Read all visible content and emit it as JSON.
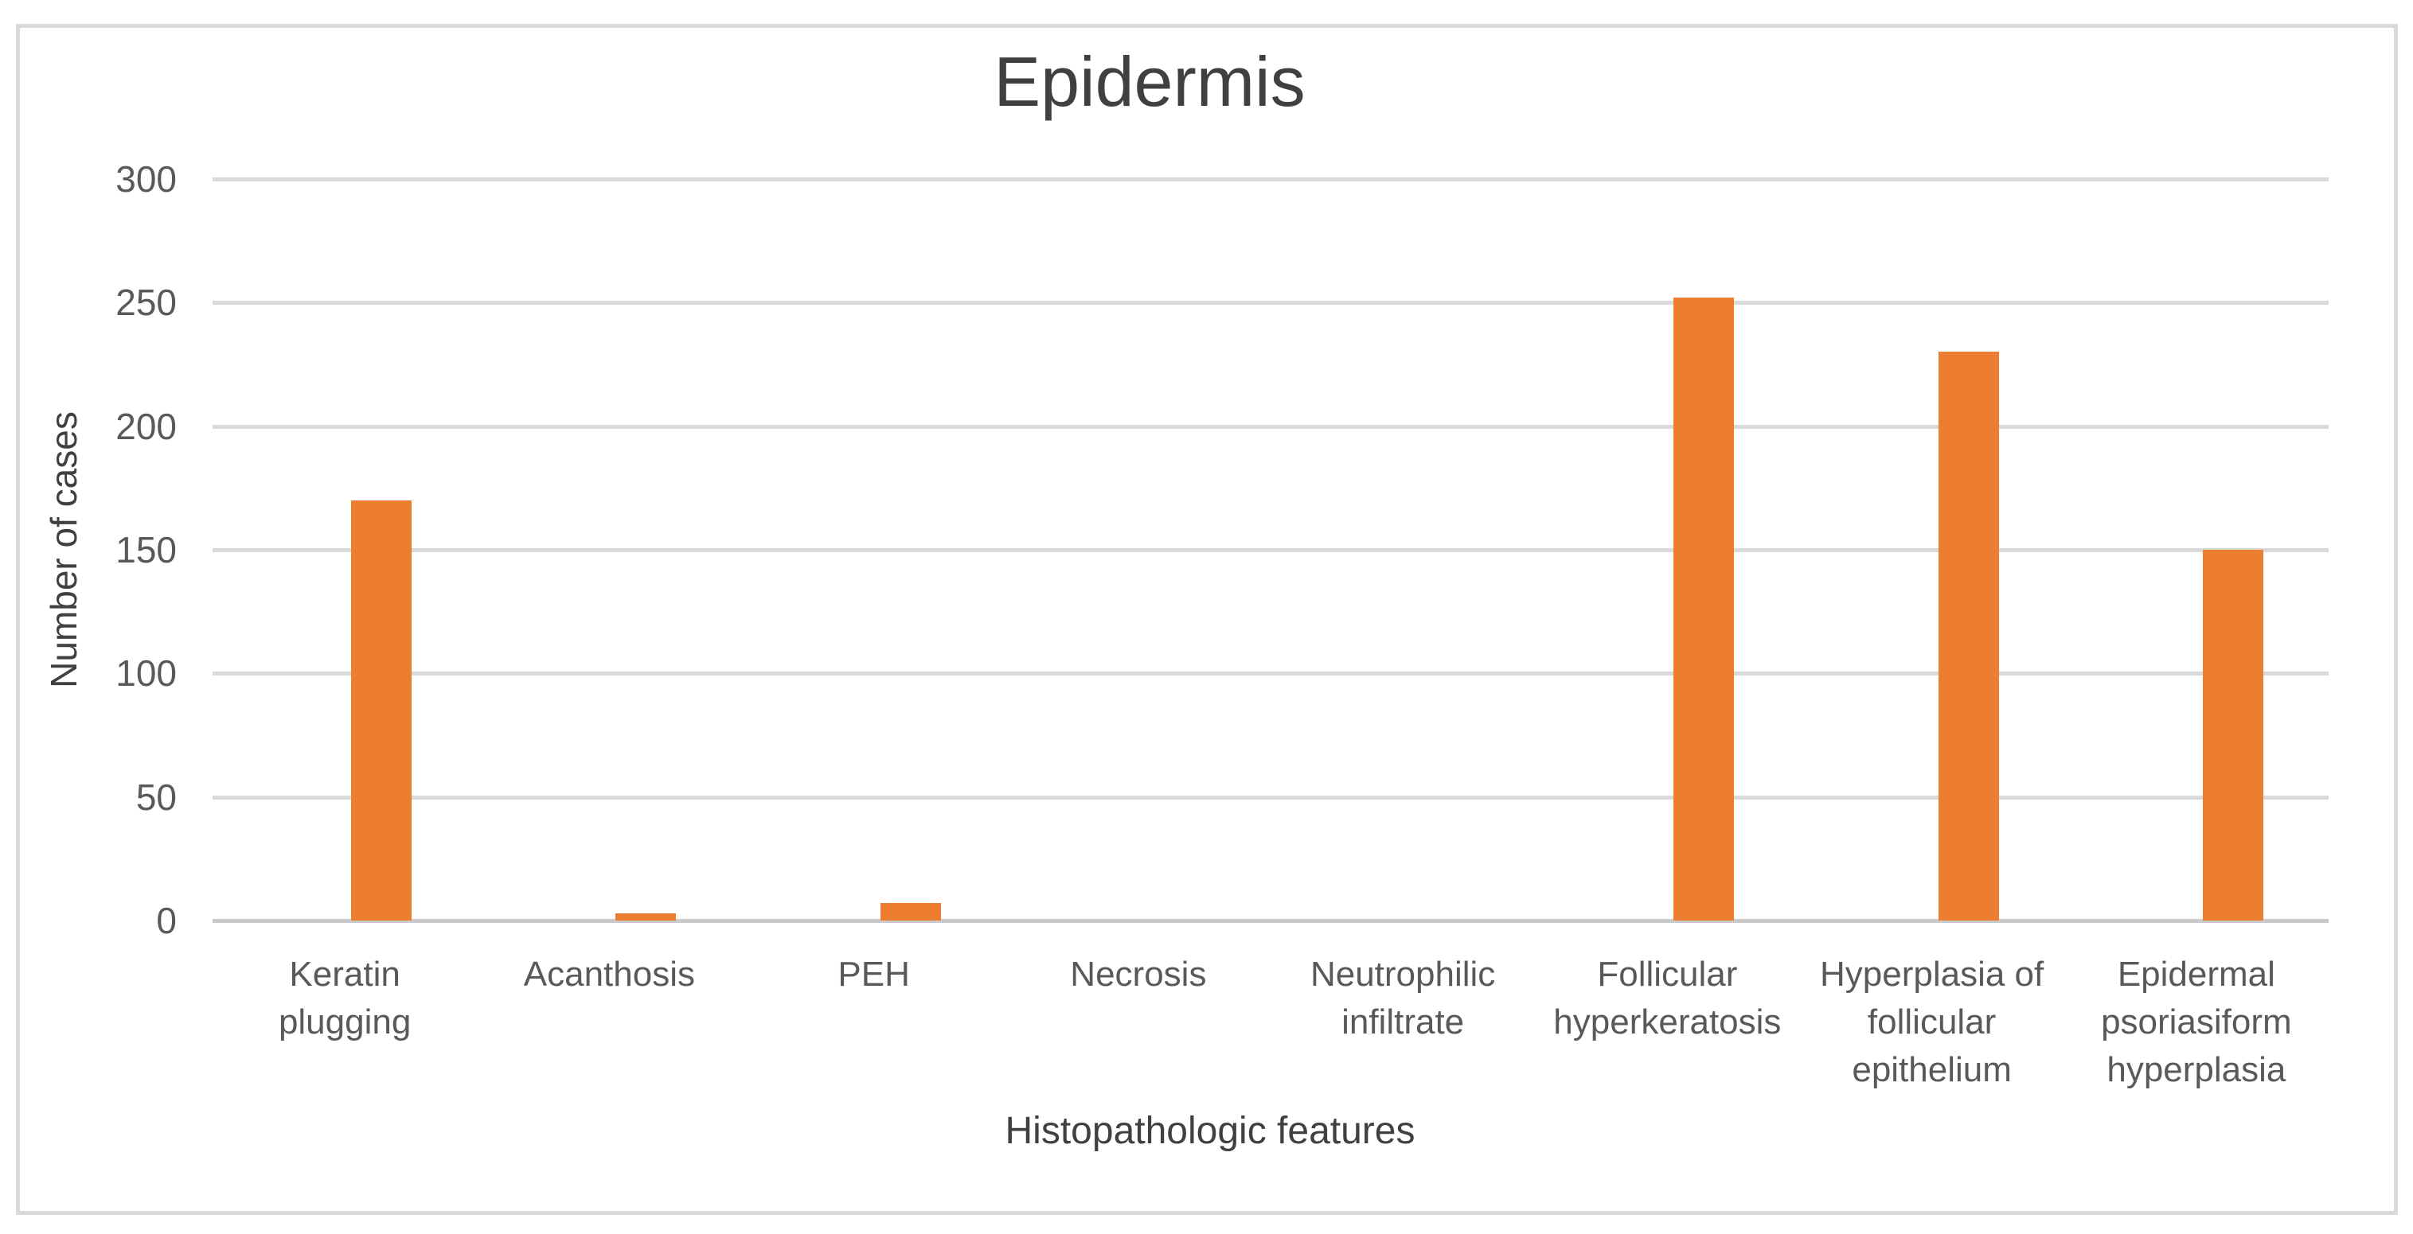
{
  "chart_data": {
    "type": "bar",
    "title": "Epidermis",
    "xlabel": "Histopathologic features",
    "ylabel": "Number of cases",
    "categories": [
      "Keratin plugging",
      "Acanthosis",
      "PEH",
      "Necrosis",
      "Neutrophilic infiltrate",
      "Follicular hyperkeratosis",
      "Hyperplasia of follicular epithelium",
      "Epidermal psoriasiform hyperplasia"
    ],
    "category_label_lines": [
      "Keratin\nplugging",
      "Acanthosis",
      "PEH",
      "Necrosis",
      "Neutrophilic\ninfiltrate",
      "Follicular\nhyperkeratosis",
      "Hyperplasia of\nfollicular\nepithelium",
      "Epidermal\npsoriasiform\nhyperplasia"
    ],
    "values": [
      170,
      3,
      7,
      0,
      0,
      252,
      230,
      150
    ],
    "ylim": [
      0,
      300
    ],
    "yticks": [
      0,
      50,
      100,
      150,
      200,
      250,
      300
    ],
    "grid": "horizontal",
    "legend": "none",
    "bar_color": "#ED7D31"
  },
  "colors": {
    "bar": "#ED7D31",
    "gridline": "#D9D9D9",
    "axis_line": "#C9C9C9",
    "label_text": "#595959",
    "title_text": "#404040",
    "frame_border": "#D9D9D9",
    "background": "#FFFFFF"
  }
}
